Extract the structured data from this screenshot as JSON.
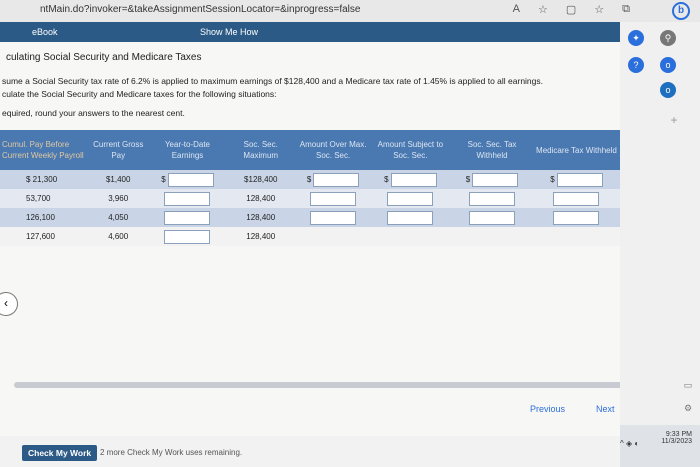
{
  "browser": {
    "url": "ntMain.do?invoker=&takeAssignmentSessionLocator=&inprogress=false",
    "zoom_icon": "A",
    "star_icon": "☆"
  },
  "tabs": {
    "ebook": "eBook",
    "show_me": "Show Me How"
  },
  "question": {
    "title": "culating Social Security and Medicare Taxes",
    "line1": "sume a Social Security tax rate of 6.2% is applied to maximum earnings of $128,400 and a Medicare tax rate of 1.45% is applied to all earnings.",
    "line2": "culate the Social Security and Medicare taxes for the following situations:",
    "line3": "equired, round your answers to the nearest cent."
  },
  "table": {
    "headers": [
      "Cumul. Pay Before Current Weekly Payroll",
      "Current Gross Pay",
      "Year-to-Date Earnings",
      "Soc. Sec. Maximum",
      "Amount Over Max. Soc. Sec.",
      "Amount Subject to Soc. Sec.",
      "Soc. Sec. Tax Withheld",
      "Medicare Tax Withheld"
    ],
    "rows": [
      {
        "cumul": "$ 21,300",
        "gross": "$1,400",
        "max": "$128,400"
      },
      {
        "cumul": "53,700",
        "gross": "3,960",
        "max": "128,400"
      },
      {
        "cumul": "126,100",
        "gross": "4,050",
        "max": "128,400"
      },
      {
        "cumul": "127,600",
        "gross": "4,600",
        "max": "128,400"
      }
    ],
    "dollar_sign": "$"
  },
  "navigation": {
    "previous": "Previous",
    "next": "Next"
  },
  "footer": {
    "check_button": "Check My Work",
    "remaining": "2 more Check My Work uses remaining."
  },
  "taskbar": {
    "time": "9:33 PM",
    "date": "11/3/2023"
  }
}
